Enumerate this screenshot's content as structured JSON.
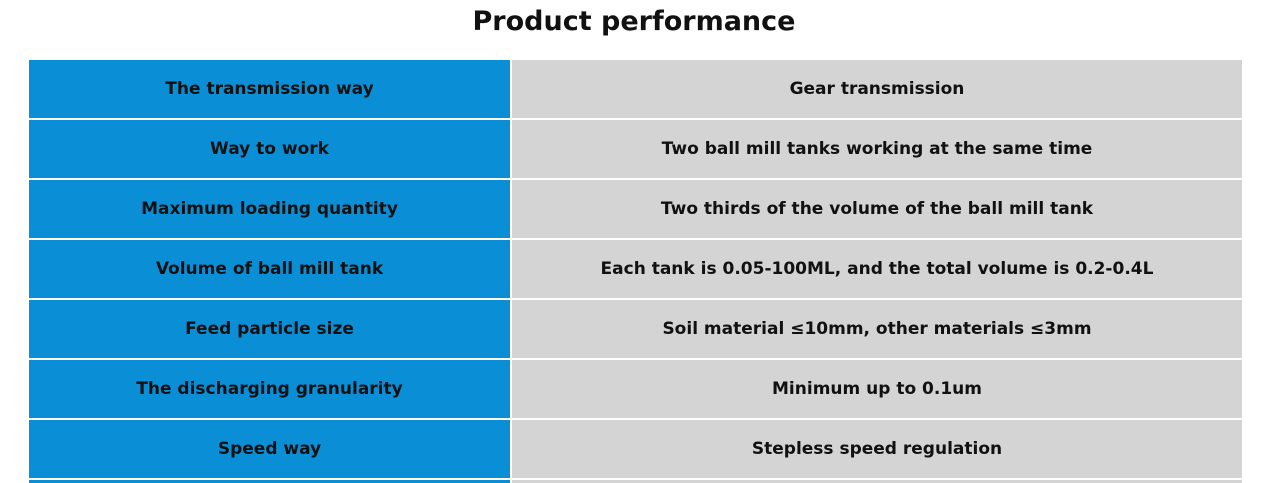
{
  "header": {
    "title": "Product performance"
  },
  "table": {
    "rows": [
      [
        "The transmission way",
        "Gear transmission"
      ],
      [
        "Way to work",
        "Two ball mill tanks working at the same time"
      ],
      [
        "Maximum loading quantity",
        "Two thirds of the volume of the ball mill tank"
      ],
      [
        "Volume of ball mill tank",
        "Each tank is 0.05-100ML, and the total volume is 0.2-0.4L"
      ],
      [
        "Feed particle size",
        "Soil material ≤10mm, other materials ≤3mm"
      ],
      [
        "The discharging granularity",
        "Minimum up to 0.1um"
      ],
      [
        "Speed way",
        "Stepless speed regulation"
      ]
    ]
  }
}
